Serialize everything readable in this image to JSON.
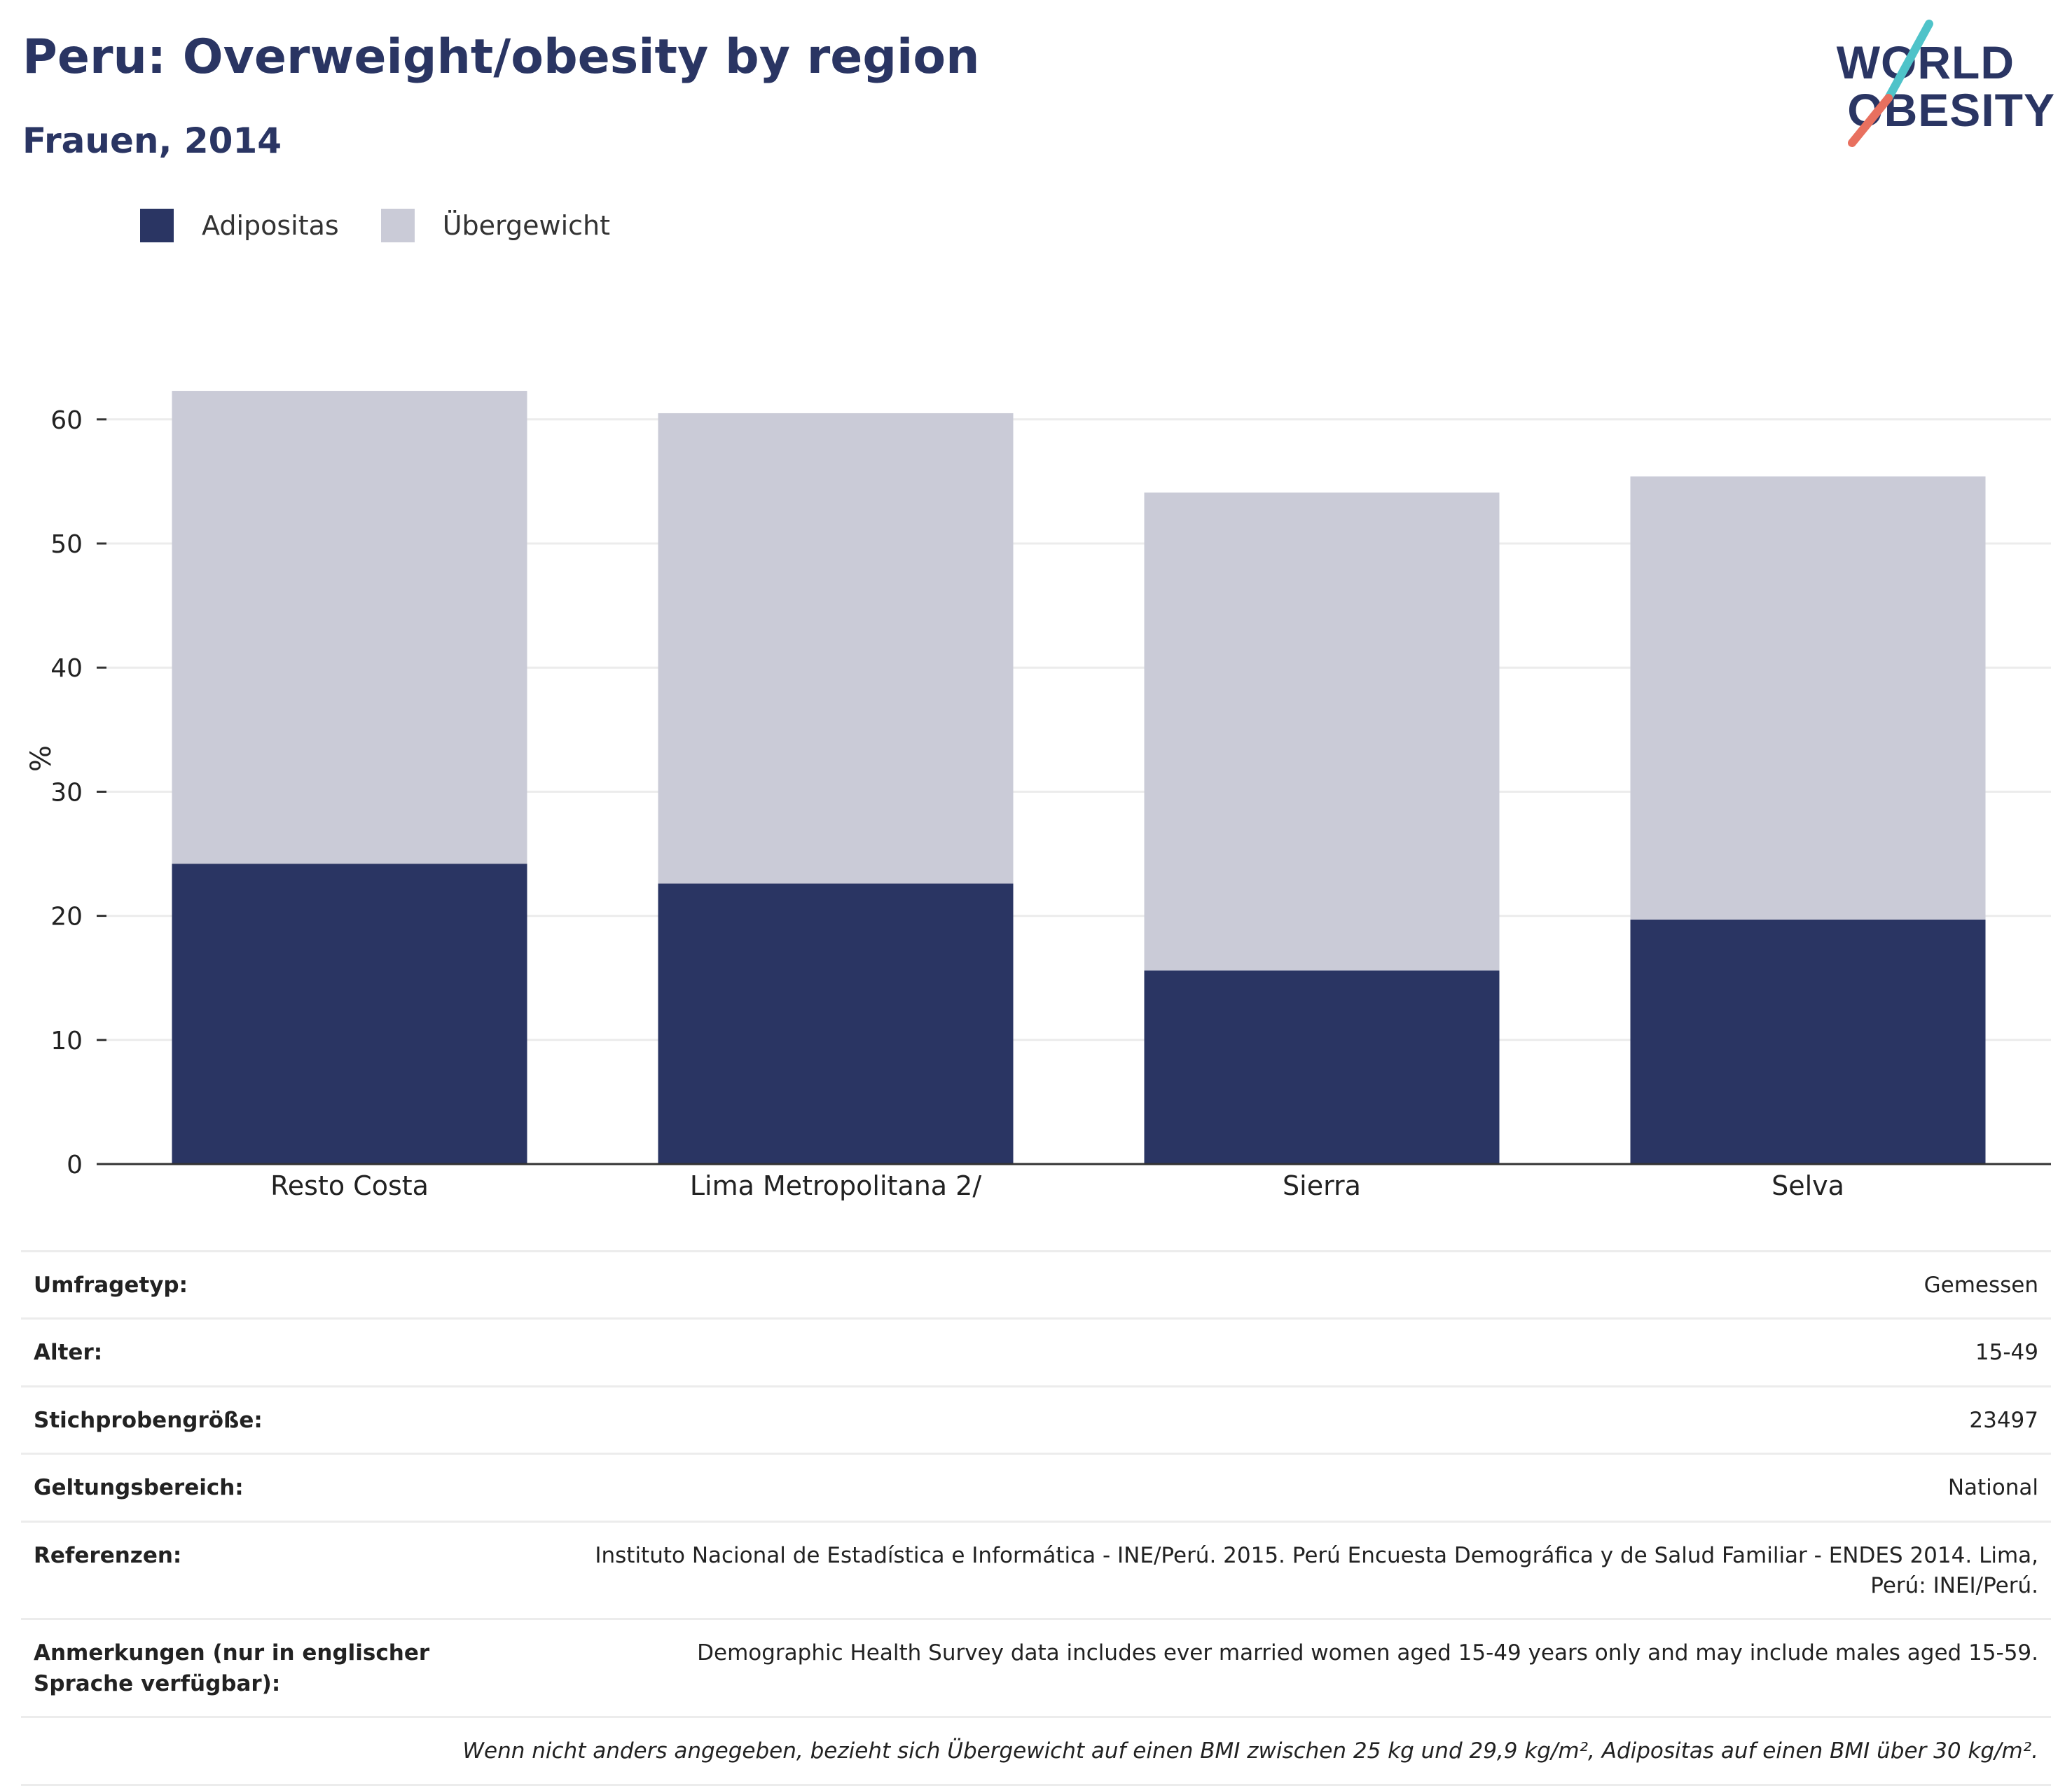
{
  "header": {
    "title": "Peru: Overweight/obesity by region",
    "subtitle": "Frauen, 2014"
  },
  "logo": {
    "line1": "WORLD",
    "line2": "OBESITY"
  },
  "chart_data": {
    "type": "bar",
    "stacked": true,
    "categories": [
      "Resto Costa",
      "Lima Metropolitana 2/",
      "Sierra",
      "Selva"
    ],
    "series": [
      {
        "name": "Adipositas",
        "color": "#2a3563",
        "values": [
          24.2,
          22.6,
          15.6,
          19.7
        ]
      },
      {
        "name": "Übergewicht",
        "color": "#cacbd7",
        "values": [
          38.1,
          37.9,
          38.5,
          35.7
        ]
      }
    ],
    "ylabel": "%",
    "ylim": [
      0,
      65
    ],
    "yticks": [
      0,
      10,
      20,
      30,
      40,
      50,
      60
    ],
    "grid": true,
    "legend_position": "top-left"
  },
  "table": {
    "rows": [
      {
        "key": "Umfragetyp:",
        "value": "Gemessen"
      },
      {
        "key": "Alter:",
        "value": "15-49"
      },
      {
        "key": "Stichprobengröße:",
        "value": "23497"
      },
      {
        "key": "Geltungsbereich:",
        "value": "National"
      },
      {
        "key": "Referenzen:",
        "value": "Instituto Nacional de Estadística e Informática - INE/Perú. 2015. Perú Encuesta Demográfica y de Salud Familiar - ENDES 2014. Lima, Perú: INEI/Perú."
      },
      {
        "key": "Anmerkungen (nur in englischer Sprache verfügbar):",
        "value": "Demographic Health Survey data includes ever married women aged 15-49 years only and may include males aged 15-59."
      }
    ],
    "footnote": "Wenn nicht anders angegeben, bezieht sich Übergewicht auf einen BMI zwischen 25 kg und 29,9 kg/m², Adipositas auf einen BMI über 30 kg/m²."
  }
}
